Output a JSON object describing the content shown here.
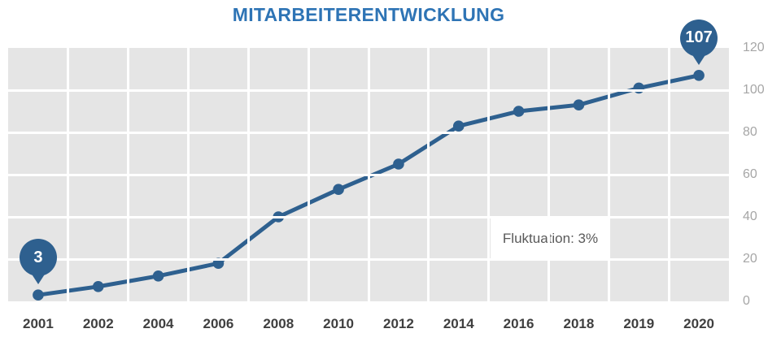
{
  "title": "MITARBEITERENTWICKLUNG",
  "colors": {
    "title": "#2E74B5",
    "line": "#2E608F",
    "plot_bg": "#E5E5E5",
    "gridline": "#FFFFFF",
    "x_label": "#3F3F3F",
    "y_label": "#A6A6A6",
    "annotation_text": "#595959",
    "pin_text": "#FFFFFF"
  },
  "chart_data": {
    "type": "line",
    "title": "MITARBEITERENTWICKLUNG",
    "categories": [
      "2001",
      "2002",
      "2004",
      "2006",
      "2008",
      "2010",
      "2012",
      "2014",
      "2016",
      "2018",
      "2019",
      "2020"
    ],
    "values": [
      3,
      7,
      12,
      18,
      40,
      53,
      65,
      83,
      90,
      93,
      101,
      107
    ],
    "xlabel": "",
    "ylabel": "",
    "ylim": [
      0,
      120
    ],
    "yticks": [
      0,
      20,
      40,
      60,
      80,
      100,
      120
    ],
    "grid": true,
    "grid_color": "white",
    "plot_background": "light-gray",
    "legend": false,
    "y_axis_position": "right",
    "marker": "circle",
    "annotations": [
      {
        "type": "text-box",
        "text": "Fluktuation: 3%"
      },
      {
        "type": "pin-callout",
        "label": "3",
        "category": "2001",
        "value": 3
      },
      {
        "type": "pin-callout",
        "label": "107",
        "category": "2020",
        "value": 107
      }
    ]
  },
  "annotation": {
    "label": "Fluktuation: 3%"
  },
  "pins": {
    "start_label": "3",
    "end_label": "107"
  }
}
